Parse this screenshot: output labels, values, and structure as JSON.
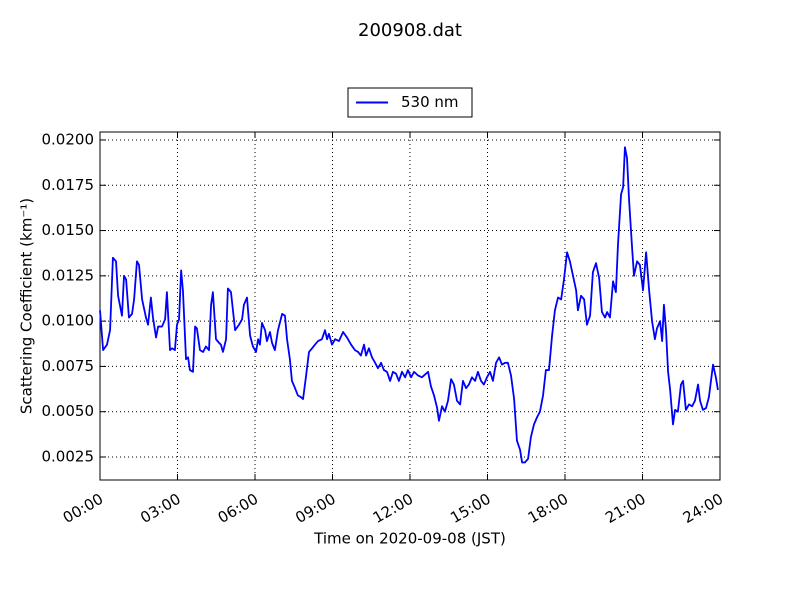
{
  "chart_data": {
    "type": "line",
    "title": "200908.dat",
    "xlabel": "Time on 2020-09-08 (JST)",
    "ylabel": "Scattering Coefficient (km⁻¹)",
    "xlim": [
      0,
      24
    ],
    "xticks": [
      {
        "value": 0,
        "label": "00:00"
      },
      {
        "value": 3,
        "label": "03:00"
      },
      {
        "value": 6,
        "label": "06:00"
      },
      {
        "value": 9,
        "label": "09:00"
      },
      {
        "value": 12,
        "label": "12:00"
      },
      {
        "value": 15,
        "label": "15:00"
      },
      {
        "value": 18,
        "label": "18:00"
      },
      {
        "value": 21,
        "label": "21:00"
      },
      {
        "value": 24,
        "label": "24:00"
      }
    ],
    "ylim": [
      0.00123,
      0.02044
    ],
    "yticks": [
      0.0025,
      {
        "value": 0.005,
        "label": "0.0050"
      },
      0.0075,
      {
        "value": 0.01,
        "label": "0.0100"
      },
      0.0125,
      {
        "value": 0.015,
        "label": "0.0150"
      },
      0.0175,
      {
        "value": 0.02,
        "label": "0.0200"
      }
    ],
    "grid": true,
    "legend": "top-center",
    "x": [
      0,
      0.12,
      0.27,
      0.39,
      0.5,
      0.62,
      0.7,
      0.85,
      0.93,
      1.01,
      1.12,
      1.24,
      1.32,
      1.43,
      1.51,
      1.63,
      1.78,
      1.86,
      1.97,
      2.05,
      2.17,
      2.25,
      2.4,
      2.52,
      2.59,
      2.71,
      2.79,
      2.9,
      2.98,
      3.06,
      3.14,
      3.21,
      3.33,
      3.41,
      3.48,
      3.6,
      3.68,
      3.75,
      3.87,
      3.99,
      4.1,
      4.22,
      4.3,
      4.37,
      4.49,
      4.61,
      4.68,
      4.76,
      4.88,
      4.95,
      5.07,
      5.23,
      5.38,
      5.5,
      5.57,
      5.69,
      5.81,
      5.92,
      6.04,
      6.12,
      6.19,
      6.27,
      6.39,
      6.46,
      6.58,
      6.66,
      6.77,
      6.89,
      7.05,
      7.16,
      7.24,
      7.35,
      7.43,
      7.55,
      7.66,
      7.78,
      7.86,
      7.97,
      8.09,
      8.21,
      8.32,
      8.44,
      8.59,
      8.71,
      8.79,
      8.86,
      8.98,
      9.1,
      9.25,
      9.41,
      9.56,
      9.72,
      9.87,
      9.99,
      10.1,
      10.22,
      10.3,
      10.41,
      10.53,
      10.65,
      10.76,
      10.88,
      10.99,
      11.11,
      11.23,
      11.34,
      11.46,
      11.57,
      11.69,
      11.81,
      11.92,
      12.04,
      12.16,
      12.31,
      12.46,
      12.7,
      12.81,
      12.93,
      13.05,
      13.12,
      13.24,
      13.35,
      13.47,
      13.59,
      13.7,
      13.82,
      13.94,
      14.05,
      14.17,
      14.28,
      14.4,
      14.52,
      14.63,
      14.75,
      14.86,
      14.98,
      15.1,
      15.21,
      15.33,
      15.45,
      15.56,
      15.68,
      15.79,
      15.91,
      16.03,
      16.14,
      16.26,
      16.34,
      16.45,
      16.57,
      16.68,
      16.8,
      16.92,
      17.03,
      17.15,
      17.26,
      17.38,
      17.5,
      17.61,
      17.73,
      17.85,
      17.96,
      18.08,
      18.19,
      18.31,
      18.43,
      18.5,
      18.62,
      18.74,
      18.85,
      18.97,
      19.08,
      19.2,
      19.32,
      19.43,
      19.55,
      19.63,
      19.74,
      19.86,
      19.97,
      20.05,
      20.17,
      20.25,
      20.32,
      20.4,
      20.48,
      20.59,
      20.67,
      20.79,
      20.9,
      21.02,
      21.14,
      21.25,
      21.37,
      21.48,
      21.56,
      21.68,
      21.76,
      21.83,
      21.91,
      21.99,
      22.07,
      22.18,
      22.26,
      22.37,
      22.49,
      22.57,
      22.68,
      22.8,
      22.92,
      23.03,
      23.15,
      23.23,
      23.34,
      23.46,
      23.57,
      23.73,
      23.84,
      23.92
    ],
    "series": [
      {
        "name": "530 nm",
        "color": "#0000ff",
        "values": [
          0.0106,
          0.0084,
          0.0087,
          0.0095,
          0.0135,
          0.0133,
          0.0114,
          0.0103,
          0.0125,
          0.0123,
          0.0102,
          0.0104,
          0.0112,
          0.0133,
          0.0131,
          0.0112,
          0.0102,
          0.0098,
          0.0113,
          0.0102,
          0.0091,
          0.0097,
          0.0097,
          0.0101,
          0.0116,
          0.0084,
          0.0085,
          0.0084,
          0.0098,
          0.0101,
          0.0128,
          0.0117,
          0.0079,
          0.008,
          0.0073,
          0.0072,
          0.0097,
          0.0096,
          0.0084,
          0.0083,
          0.0086,
          0.0084,
          0.0109,
          0.0116,
          0.009,
          0.0088,
          0.0087,
          0.0083,
          0.009,
          0.0118,
          0.0116,
          0.0095,
          0.0098,
          0.0101,
          0.0109,
          0.0113,
          0.0092,
          0.0086,
          0.0083,
          0.009,
          0.0087,
          0.0099,
          0.0095,
          0.0089,
          0.0094,
          0.0088,
          0.0084,
          0.0095,
          0.0104,
          0.0103,
          0.009,
          0.0079,
          0.0067,
          0.0063,
          0.0059,
          0.0058,
          0.0057,
          0.0069,
          0.0083,
          0.0085,
          0.0087,
          0.0089,
          0.009,
          0.0095,
          0.009,
          0.0093,
          0.0087,
          0.009,
          0.0089,
          0.0094,
          0.0091,
          0.0087,
          0.0084,
          0.0083,
          0.0081,
          0.0087,
          0.0081,
          0.0085,
          0.008,
          0.0077,
          0.0074,
          0.0077,
          0.0073,
          0.0072,
          0.0067,
          0.0072,
          0.0071,
          0.0067,
          0.0072,
          0.0069,
          0.0073,
          0.0069,
          0.0072,
          0.007,
          0.0069,
          0.0072,
          0.0064,
          0.0059,
          0.0052,
          0.0045,
          0.0053,
          0.005,
          0.0056,
          0.0068,
          0.0065,
          0.0056,
          0.0054,
          0.0067,
          0.0063,
          0.0065,
          0.0069,
          0.0067,
          0.0072,
          0.0067,
          0.0065,
          0.0069,
          0.0072,
          0.0067,
          0.0077,
          0.008,
          0.0076,
          0.0077,
          0.0077,
          0.007,
          0.0057,
          0.0034,
          0.0029,
          0.0022,
          0.0022,
          0.0024,
          0.0036,
          0.0043,
          0.0047,
          0.005,
          0.0059,
          0.0073,
          0.0073,
          0.0092,
          0.0106,
          0.0113,
          0.0112,
          0.0123,
          0.0138,
          0.0133,
          0.0125,
          0.0117,
          0.0106,
          0.0114,
          0.0112,
          0.0098,
          0.0103,
          0.0127,
          0.0132,
          0.0124,
          0.0105,
          0.0102,
          0.0105,
          0.0102,
          0.0122,
          0.0116,
          0.0142,
          0.017,
          0.0174,
          0.0196,
          0.019,
          0.0167,
          0.0142,
          0.0125,
          0.0133,
          0.0131,
          0.0117,
          0.0138,
          0.0118,
          0.01,
          0.009,
          0.0096,
          0.01,
          0.0089,
          0.0109,
          0.0095,
          0.0072,
          0.0062,
          0.0043,
          0.0051,
          0.005,
          0.0065,
          0.0067,
          0.0051,
          0.0054,
          0.0053,
          0.0056,
          0.0065,
          0.0056,
          0.0051,
          0.0052,
          0.0058,
          0.0076,
          0.0069,
          0.0062
        ]
      }
    ]
  }
}
